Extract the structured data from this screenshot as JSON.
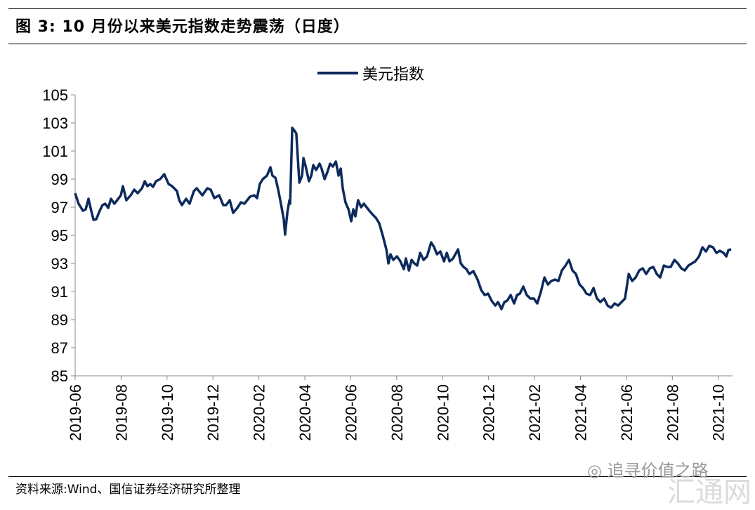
{
  "header": {
    "title": "图 3:  10 月份以来美元指数走势震荡（日度）"
  },
  "footer": {
    "source": "资料来源:Wind、国信证券经济研究所整理"
  },
  "watermark": {
    "account": "追寻价值之路",
    "site": "汇通网"
  },
  "chart_data": {
    "type": "line",
    "title": "",
    "xlabel": "",
    "ylabel": "",
    "x_unit": "months since 2019-06",
    "xlim": [
      0,
      28.62
    ],
    "ylim": [
      85,
      105
    ],
    "yticks": [
      85,
      87,
      89,
      91,
      93,
      95,
      97,
      99,
      101,
      103,
      105
    ],
    "xtick_positions": [
      0,
      2,
      4,
      6,
      8,
      10,
      12,
      14,
      16,
      18,
      20,
      22,
      24,
      26,
      28
    ],
    "xtick_labels": [
      "2019-06",
      "2019-08",
      "2019-10",
      "2019-12",
      "2020-02",
      "2020-04",
      "2020-06",
      "2020-08",
      "2020-10",
      "2020-12",
      "2021-02",
      "2021-04",
      "2021-06",
      "2021-08",
      "2021-10"
    ],
    "grid": false,
    "legend_position": "top-center",
    "color": "#0d2a5c",
    "series": [
      {
        "name": "美元指数",
        "points": [
          [
            0,
            98.0
          ],
          [
            0.15,
            97.25
          ],
          [
            0.34,
            96.75
          ],
          [
            0.46,
            96.85
          ],
          [
            0.58,
            97.6
          ],
          [
            0.7,
            96.75
          ],
          [
            0.8,
            96.1
          ],
          [
            0.92,
            96.15
          ],
          [
            1.07,
            96.75
          ],
          [
            1.19,
            97.15
          ],
          [
            1.31,
            97.25
          ],
          [
            1.44,
            96.95
          ],
          [
            1.56,
            97.6
          ],
          [
            1.71,
            97.25
          ],
          [
            1.83,
            97.5
          ],
          [
            1.99,
            97.85
          ],
          [
            2.08,
            98.5
          ],
          [
            2.23,
            97.5
          ],
          [
            2.42,
            97.85
          ],
          [
            2.57,
            98.25
          ],
          [
            2.72,
            98.0
          ],
          [
            2.91,
            98.35
          ],
          [
            3.03,
            98.85
          ],
          [
            3.15,
            98.5
          ],
          [
            3.27,
            98.65
          ],
          [
            3.39,
            98.45
          ],
          [
            3.52,
            98.85
          ],
          [
            3.7,
            99.0
          ],
          [
            3.88,
            99.35
          ],
          [
            4.07,
            98.65
          ],
          [
            4.22,
            98.5
          ],
          [
            4.43,
            98.15
          ],
          [
            4.53,
            97.5
          ],
          [
            4.65,
            97.15
          ],
          [
            4.83,
            97.6
          ],
          [
            4.98,
            97.25
          ],
          [
            5.17,
            98.15
          ],
          [
            5.29,
            98.35
          ],
          [
            5.54,
            97.85
          ],
          [
            5.75,
            98.35
          ],
          [
            5.9,
            98.25
          ],
          [
            6.06,
            97.65
          ],
          [
            6.27,
            97.85
          ],
          [
            6.45,
            97.15
          ],
          [
            6.57,
            97.15
          ],
          [
            6.73,
            97.5
          ],
          [
            6.88,
            96.6
          ],
          [
            7.06,
            96.95
          ],
          [
            7.22,
            97.35
          ],
          [
            7.37,
            97.25
          ],
          [
            7.49,
            97.5
          ],
          [
            7.61,
            97.75
          ],
          [
            7.8,
            97.85
          ],
          [
            7.92,
            97.65
          ],
          [
            8.04,
            98.65
          ],
          [
            8.17,
            99.0
          ],
          [
            8.35,
            99.25
          ],
          [
            8.5,
            99.85
          ],
          [
            8.59,
            99.25
          ],
          [
            8.72,
            99.1
          ],
          [
            8.84,
            98.25
          ],
          [
            8.96,
            97.25
          ],
          [
            9.08,
            96.15
          ],
          [
            9.14,
            95.05
          ],
          [
            9.24,
            96.65
          ],
          [
            9.33,
            97.5
          ],
          [
            9.36,
            97.25
          ],
          [
            9.45,
            102.65
          ],
          [
            9.57,
            102.4
          ],
          [
            9.63,
            102.25
          ],
          [
            9.76,
            98.75
          ],
          [
            9.88,
            99.25
          ],
          [
            9.94,
            100.5
          ],
          [
            10.06,
            99.75
          ],
          [
            10.18,
            98.85
          ],
          [
            10.28,
            99.25
          ],
          [
            10.37,
            100.0
          ],
          [
            10.49,
            99.65
          ],
          [
            10.64,
            100.1
          ],
          [
            10.73,
            99.75
          ],
          [
            10.86,
            99.0
          ],
          [
            10.98,
            99.5
          ],
          [
            11.1,
            100.1
          ],
          [
            11.22,
            99.9
          ],
          [
            11.35,
            100.25
          ],
          [
            11.47,
            99.25
          ],
          [
            11.56,
            99.75
          ],
          [
            11.65,
            98.35
          ],
          [
            11.77,
            97.35
          ],
          [
            11.9,
            96.85
          ],
          [
            12.02,
            96.0
          ],
          [
            12.11,
            96.85
          ],
          [
            12.2,
            96.35
          ],
          [
            12.32,
            97.5
          ],
          [
            12.45,
            97.0
          ],
          [
            12.57,
            97.25
          ],
          [
            12.69,
            97.0
          ],
          [
            12.81,
            96.75
          ],
          [
            12.94,
            96.5
          ],
          [
            13.09,
            96.25
          ],
          [
            13.24,
            95.85
          ],
          [
            13.39,
            95.0
          ],
          [
            13.55,
            94.0
          ],
          [
            13.64,
            93.0
          ],
          [
            13.73,
            93.65
          ],
          [
            13.85,
            93.25
          ],
          [
            14.01,
            93.5
          ],
          [
            14.16,
            93.15
          ],
          [
            14.31,
            92.6
          ],
          [
            14.4,
            93.35
          ],
          [
            14.53,
            92.5
          ],
          [
            14.65,
            93.25
          ],
          [
            14.77,
            93.0
          ],
          [
            14.89,
            92.85
          ],
          [
            15.02,
            93.75
          ],
          [
            15.17,
            93.25
          ],
          [
            15.32,
            93.5
          ],
          [
            15.5,
            94.5
          ],
          [
            15.63,
            94.15
          ],
          [
            15.75,
            93.65
          ],
          [
            15.9,
            93.85
          ],
          [
            16.06,
            93.15
          ],
          [
            16.18,
            93.75
          ],
          [
            16.3,
            93.15
          ],
          [
            16.45,
            93.35
          ],
          [
            16.67,
            94.0
          ],
          [
            16.79,
            93.0
          ],
          [
            16.91,
            92.75
          ],
          [
            17.03,
            92.6
          ],
          [
            17.16,
            92.25
          ],
          [
            17.34,
            92.45
          ],
          [
            17.52,
            91.85
          ],
          [
            17.68,
            91.1
          ],
          [
            17.83,
            90.75
          ],
          [
            17.98,
            90.85
          ],
          [
            18.13,
            90.35
          ],
          [
            18.29,
            90.0
          ],
          [
            18.41,
            90.25
          ],
          [
            18.56,
            89.75
          ],
          [
            18.69,
            90.25
          ],
          [
            18.81,
            90.35
          ],
          [
            18.96,
            90.75
          ],
          [
            19.11,
            90.15
          ],
          [
            19.24,
            90.75
          ],
          [
            19.36,
            90.85
          ],
          [
            19.51,
            91.35
          ],
          [
            19.66,
            90.75
          ],
          [
            19.82,
            90.5
          ],
          [
            19.97,
            90.5
          ],
          [
            20.12,
            90.15
          ],
          [
            20.28,
            91.0
          ],
          [
            20.43,
            92.0
          ],
          [
            20.58,
            91.5
          ],
          [
            20.73,
            91.75
          ],
          [
            20.89,
            91.85
          ],
          [
            21.04,
            91.75
          ],
          [
            21.19,
            92.5
          ],
          [
            21.35,
            92.85
          ],
          [
            21.5,
            93.25
          ],
          [
            21.65,
            92.5
          ],
          [
            21.8,
            92.25
          ],
          [
            21.96,
            91.5
          ],
          [
            22.11,
            91.25
          ],
          [
            22.26,
            90.85
          ],
          [
            22.42,
            90.75
          ],
          [
            22.57,
            91.25
          ],
          [
            22.72,
            90.5
          ],
          [
            22.87,
            90.25
          ],
          [
            23.03,
            90.5
          ],
          [
            23.18,
            90.0
          ],
          [
            23.33,
            89.85
          ],
          [
            23.49,
            90.15
          ],
          [
            23.64,
            90.0
          ],
          [
            23.79,
            90.25
          ],
          [
            23.94,
            90.5
          ],
          [
            24.1,
            92.25
          ],
          [
            24.25,
            91.75
          ],
          [
            24.4,
            92.0
          ],
          [
            24.56,
            92.5
          ],
          [
            24.71,
            92.65
          ],
          [
            24.86,
            92.25
          ],
          [
            25.02,
            92.65
          ],
          [
            25.17,
            92.75
          ],
          [
            25.32,
            92.25
          ],
          [
            25.47,
            92.0
          ],
          [
            25.63,
            92.85
          ],
          [
            25.78,
            92.75
          ],
          [
            25.93,
            92.75
          ],
          [
            26.09,
            93.25
          ],
          [
            26.24,
            93.0
          ],
          [
            26.39,
            92.65
          ],
          [
            26.54,
            92.5
          ],
          [
            26.7,
            92.85
          ],
          [
            26.85,
            93.0
          ],
          [
            27.0,
            93.15
          ],
          [
            27.16,
            93.5
          ],
          [
            27.31,
            94.15
          ],
          [
            27.46,
            93.85
          ],
          [
            27.61,
            94.25
          ],
          [
            27.77,
            94.15
          ],
          [
            27.92,
            93.75
          ],
          [
            28.07,
            93.9
          ],
          [
            28.23,
            93.75
          ],
          [
            28.35,
            93.5
          ],
          [
            28.44,
            93.95
          ],
          [
            28.56,
            94.0
          ]
        ]
      }
    ]
  }
}
